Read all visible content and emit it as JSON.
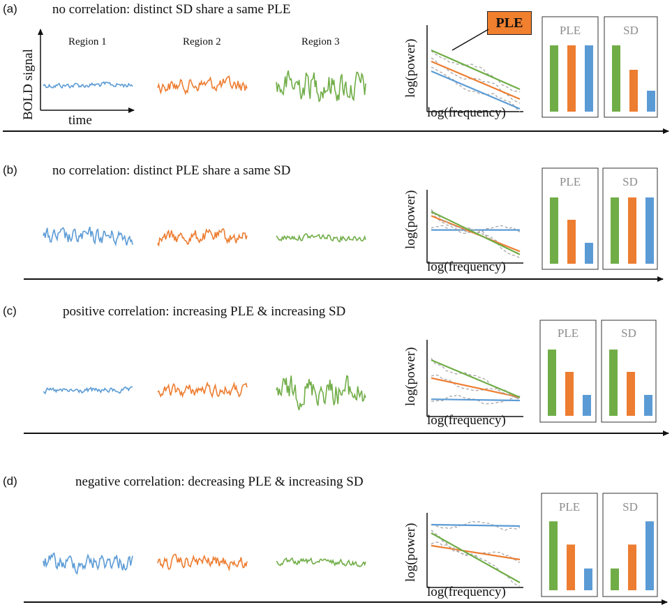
{
  "colors": {
    "green": "#70ad47",
    "orange": "#ed7d31",
    "blue": "#5b9bd5",
    "gray": "#a6a6a6",
    "callout": "#f07f2e"
  },
  "panels": [
    {
      "label": "(a)",
      "title": "no correlation: distinct SD share a same PLE",
      "regions": [
        "Region 1",
        "Region 2",
        "Region 3"
      ],
      "signal_sd": [
        0.18,
        0.45,
        1.0
      ],
      "spectrum": {
        "green": [
          0.88,
          0.32
        ],
        "orange": [
          0.72,
          0.18
        ],
        "blue": [
          0.58,
          0.04
        ]
      },
      "bars": {
        "PLE": [
          0.95,
          0.95,
          0.95
        ],
        "SD": [
          0.95,
          0.6,
          0.3
        ]
      }
    },
    {
      "label": "(b)",
      "title": "no correlation: distinct PLE share a same SD",
      "regions": [],
      "signal_sd": [
        0.55,
        0.45,
        0.22
      ],
      "spectrum": {
        "green": [
          0.85,
          0.15
        ],
        "orange": [
          0.78,
          0.2
        ],
        "blue": [
          0.55,
          0.55
        ]
      },
      "bars": {
        "PLE": [
          0.95,
          0.63,
          0.3
        ],
        "SD": [
          0.95,
          0.95,
          0.95
        ]
      }
    },
    {
      "label": "(c)",
      "title": "positive correlation: increasing PLE & increasing SD",
      "regions": [],
      "signal_sd": [
        0.18,
        0.42,
        0.95
      ],
      "spectrum": {
        "green": [
          0.88,
          0.3
        ],
        "orange": [
          0.6,
          0.3
        ],
        "blue": [
          0.27,
          0.25
        ]
      },
      "bars": {
        "PLE": [
          0.95,
          0.63,
          0.3
        ],
        "SD": [
          0.95,
          0.63,
          0.3
        ]
      }
    },
    {
      "label": "(d)",
      "title": "negative correlation: decreasing PLE & increasing SD",
      "regions": [],
      "signal_sd": [
        0.55,
        0.42,
        0.2
      ],
      "spectrum": {
        "green": [
          0.78,
          0.07
        ],
        "orange": [
          0.6,
          0.4
        ],
        "blue": [
          0.9,
          0.88
        ]
      },
      "bars": {
        "PLE": [
          0.95,
          0.63,
          0.3
        ],
        "SD": [
          0.3,
          0.63,
          0.95
        ]
      }
    }
  ],
  "axes": {
    "signal_y": "BOLD signal",
    "signal_x": "time",
    "spectrum_y": "log(power)",
    "spectrum_x": "log(frequency)"
  },
  "callout": "PLE",
  "box_titles": {
    "ple": "PLE",
    "sd": "SD"
  }
}
